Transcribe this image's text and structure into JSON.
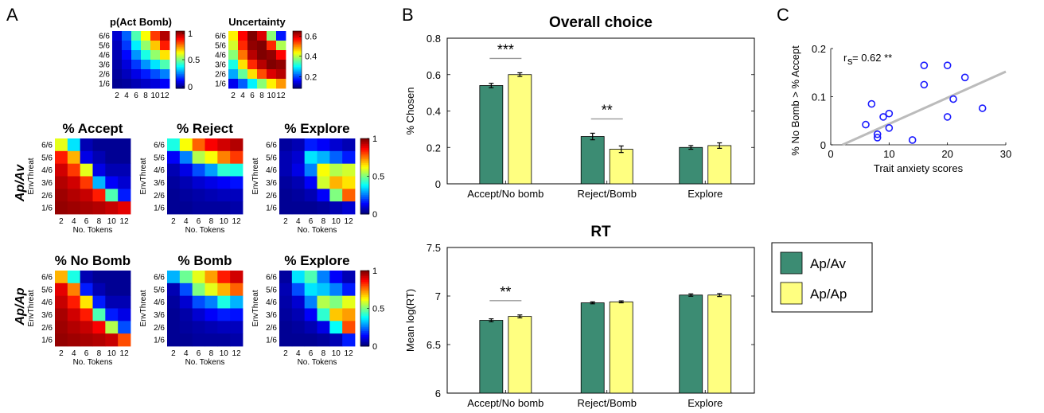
{
  "panel_letters": [
    "A",
    "B",
    "C"
  ],
  "heatmap_axes": {
    "ytick_labels": [
      "6/6",
      "5/6",
      "4/6",
      "3/6",
      "2/6",
      "1/6"
    ],
    "xtick_labels": [
      "2",
      "4",
      "6",
      "8",
      "10",
      "12"
    ],
    "ylabel": "EnvThreat",
    "xlabel": "No. Tokens"
  },
  "row_labels": {
    "row1": "Ap/Av",
    "row2": "Ap/Ap"
  },
  "colorbars": {
    "p_act_bomb": [
      "1",
      "0.5",
      "0"
    ],
    "uncertainty": [
      "0.6",
      "0.4",
      "0.2"
    ],
    "row1": [
      "1",
      "0.5",
      "0"
    ],
    "row2": [
      "1",
      "0.5",
      "0"
    ]
  },
  "legend": [
    {
      "label": "Ap/Av",
      "color": "#3c8c73"
    },
    {
      "label": "Ap/Ap",
      "color": "#ffff80"
    }
  ],
  "chart_data": [
    {
      "type": "heatmap",
      "id": "p_act_bomb",
      "title": "p(Act Bomb)",
      "rows": [
        "6/6",
        "5/6",
        "4/6",
        "3/6",
        "2/6",
        "1/6"
      ],
      "cols": [
        "2",
        "4",
        "6",
        "8",
        "10",
        "12"
      ],
      "range": [
        0,
        1
      ],
      "values": [
        [
          0.08,
          0.22,
          0.45,
          0.62,
          0.82,
          0.95
        ],
        [
          0.06,
          0.18,
          0.36,
          0.52,
          0.68,
          0.85
        ],
        [
          0.05,
          0.13,
          0.27,
          0.4,
          0.52,
          0.65
        ],
        [
          0.04,
          0.09,
          0.18,
          0.27,
          0.35,
          0.45
        ],
        [
          0.03,
          0.06,
          0.1,
          0.15,
          0.2,
          0.25
        ],
        [
          0.02,
          0.03,
          0.05,
          0.07,
          0.09,
          0.12
        ]
      ]
    },
    {
      "type": "heatmap",
      "id": "uncertainty",
      "title": "Uncertainty",
      "rows": [
        "6/6",
        "5/6",
        "4/6",
        "3/6",
        "2/6",
        "1/6"
      ],
      "cols": [
        "2",
        "4",
        "6",
        "8",
        "10",
        "12"
      ],
      "range": [
        0.1,
        0.65
      ],
      "values": [
        [
          0.45,
          0.58,
          0.65,
          0.6,
          0.38,
          0.18
        ],
        [
          0.42,
          0.56,
          0.64,
          0.65,
          0.56,
          0.4
        ],
        [
          0.38,
          0.52,
          0.62,
          0.65,
          0.64,
          0.58
        ],
        [
          0.32,
          0.46,
          0.56,
          0.62,
          0.65,
          0.64
        ],
        [
          0.26,
          0.36,
          0.46,
          0.54,
          0.6,
          0.62
        ],
        [
          0.16,
          0.22,
          0.3,
          0.38,
          0.45,
          0.5
        ]
      ]
    },
    {
      "type": "heatmap",
      "id": "apav_accept",
      "title": "% Accept",
      "rows": [
        "6/6",
        "5/6",
        "4/6",
        "3/6",
        "2/6",
        "1/6"
      ],
      "cols": [
        "2",
        "4",
        "6",
        "8",
        "10",
        "12"
      ],
      "range": [
        0,
        1
      ],
      "values": [
        [
          0.6,
          0.35,
          0.05,
          0.02,
          0.02,
          0.02
        ],
        [
          0.85,
          0.7,
          0.1,
          0.05,
          0.02,
          0.02
        ],
        [
          0.92,
          0.82,
          0.6,
          0.1,
          0.05,
          0.05
        ],
        [
          0.95,
          0.92,
          0.82,
          0.3,
          0.12,
          0.08
        ],
        [
          0.97,
          0.95,
          0.93,
          0.85,
          0.45,
          0.15
        ],
        [
          0.98,
          0.97,
          0.96,
          0.95,
          0.93,
          0.9
        ]
      ]
    },
    {
      "type": "heatmap",
      "id": "apav_reject",
      "title": "% Reject",
      "rows": [
        "6/6",
        "5/6",
        "4/6",
        "3/6",
        "2/6",
        "1/6"
      ],
      "cols": [
        "2",
        "4",
        "6",
        "8",
        "10",
        "12"
      ],
      "range": [
        0,
        1
      ],
      "values": [
        [
          0.4,
          0.62,
          0.78,
          0.88,
          0.92,
          0.95
        ],
        [
          0.12,
          0.25,
          0.55,
          0.62,
          0.75,
          0.82
        ],
        [
          0.05,
          0.1,
          0.2,
          0.28,
          0.42,
          0.4
        ],
        [
          0.03,
          0.05,
          0.08,
          0.1,
          0.12,
          0.14
        ],
        [
          0.02,
          0.03,
          0.04,
          0.05,
          0.06,
          0.06
        ],
        [
          0.02,
          0.02,
          0.03,
          0.03,
          0.03,
          0.04
        ]
      ]
    },
    {
      "type": "heatmap",
      "id": "apav_explore",
      "title": "% Explore",
      "rows": [
        "6/6",
        "5/6",
        "4/6",
        "3/6",
        "2/6",
        "1/6"
      ],
      "cols": [
        "2",
        "4",
        "6",
        "8",
        "10",
        "12"
      ],
      "range": [
        0,
        1
      ],
      "values": [
        [
          0.03,
          0.05,
          0.15,
          0.12,
          0.08,
          0.05
        ],
        [
          0.05,
          0.08,
          0.35,
          0.3,
          0.22,
          0.15
        ],
        [
          0.05,
          0.1,
          0.25,
          0.62,
          0.55,
          0.58
        ],
        [
          0.03,
          0.05,
          0.12,
          0.58,
          0.7,
          0.65
        ],
        [
          0.02,
          0.03,
          0.05,
          0.12,
          0.5,
          0.78
        ],
        [
          0.02,
          0.02,
          0.02,
          0.03,
          0.05,
          0.08
        ]
      ]
    },
    {
      "type": "heatmap",
      "id": "apap_nobomb",
      "title": "% No Bomb",
      "rows": [
        "6/6",
        "5/6",
        "4/6",
        "3/6",
        "2/6",
        "1/6"
      ],
      "cols": [
        "2",
        "4",
        "6",
        "8",
        "10",
        "12"
      ],
      "range": [
        0,
        1
      ],
      "values": [
        [
          0.7,
          0.4,
          0.05,
          0.02,
          0.02,
          0.02
        ],
        [
          0.9,
          0.75,
          0.15,
          0.05,
          0.02,
          0.02
        ],
        [
          0.93,
          0.85,
          0.65,
          0.15,
          0.05,
          0.05
        ],
        [
          0.96,
          0.92,
          0.85,
          0.45,
          0.15,
          0.1
        ],
        [
          0.97,
          0.95,
          0.93,
          0.88,
          0.55,
          0.2
        ],
        [
          0.98,
          0.97,
          0.96,
          0.95,
          0.93,
          0.8
        ]
      ]
    },
    {
      "type": "heatmap",
      "id": "apap_bomb",
      "title": "% Bomb",
      "rows": [
        "6/6",
        "5/6",
        "4/6",
        "3/6",
        "2/6",
        "1/6"
      ],
      "cols": [
        "2",
        "4",
        "6",
        "8",
        "10",
        "12"
      ],
      "range": [
        0,
        1
      ],
      "values": [
        [
          0.3,
          0.48,
          0.6,
          0.72,
          0.85,
          0.92
        ],
        [
          0.05,
          0.2,
          0.5,
          0.6,
          0.7,
          0.78
        ],
        [
          0.03,
          0.08,
          0.2,
          0.25,
          0.4,
          0.3
        ],
        [
          0.02,
          0.04,
          0.08,
          0.12,
          0.15,
          0.14
        ],
        [
          0.02,
          0.03,
          0.04,
          0.05,
          0.06,
          0.06
        ],
        [
          0.02,
          0.02,
          0.03,
          0.03,
          0.03,
          0.04
        ]
      ]
    },
    {
      "type": "heatmap",
      "id": "apap_explore",
      "title": "% Explore",
      "rows": [
        "6/6",
        "5/6",
        "4/6",
        "3/6",
        "2/6",
        "1/6"
      ],
      "cols": [
        "2",
        "4",
        "6",
        "8",
        "10",
        "12"
      ],
      "range": [
        0,
        1
      ],
      "values": [
        [
          0.03,
          0.35,
          0.45,
          0.25,
          0.12,
          0.05
        ],
        [
          0.05,
          0.2,
          0.35,
          0.32,
          0.25,
          0.15
        ],
        [
          0.04,
          0.08,
          0.25,
          0.55,
          0.5,
          0.6
        ],
        [
          0.03,
          0.05,
          0.12,
          0.42,
          0.68,
          0.72
        ],
        [
          0.02,
          0.03,
          0.05,
          0.1,
          0.38,
          0.8
        ],
        [
          0.02,
          0.02,
          0.02,
          0.03,
          0.05,
          0.15
        ]
      ]
    },
    {
      "type": "bar",
      "id": "overall_choice",
      "title": "Overall choice",
      "categories": [
        "Accept/No bomb",
        "Reject/Bomb",
        "Explore"
      ],
      "ylabel": "% Chosen",
      "ylim": [
        0,
        0.8
      ],
      "yticks": [
        "0",
        "0.2",
        "0.4",
        "0.6",
        "0.8"
      ],
      "series": [
        {
          "name": "Ap/Av",
          "values": [
            0.54,
            0.26,
            0.2
          ],
          "err": [
            0.012,
            0.018,
            0.01
          ]
        },
        {
          "name": "Ap/Ap",
          "values": [
            0.6,
            0.19,
            0.21
          ],
          "err": [
            0.01,
            0.018,
            0.015
          ]
        }
      ],
      "significance": [
        {
          "category": 0,
          "label": "***"
        },
        {
          "category": 1,
          "label": "**"
        }
      ]
    },
    {
      "type": "bar",
      "id": "rt",
      "title": "RT",
      "categories": [
        "Accept/No bomb",
        "Reject/Bomb",
        "Explore"
      ],
      "ylabel": "Mean log(RT)",
      "ylim": [
        6,
        7.5
      ],
      "yticks": [
        "6",
        "6.5",
        "7",
        "7.5"
      ],
      "series": [
        {
          "name": "Ap/Av",
          "values": [
            6.75,
            6.93,
            7.01
          ],
          "err": [
            0.015,
            0.01,
            0.012
          ]
        },
        {
          "name": "Ap/Ap",
          "values": [
            6.79,
            6.94,
            7.01
          ],
          "err": [
            0.015,
            0.01,
            0.015
          ]
        }
      ],
      "significance": [
        {
          "category": 0,
          "label": "**"
        }
      ]
    },
    {
      "type": "scatter",
      "id": "anxiety",
      "xlabel": "Trait anxiety scores",
      "ylabel": "% No Bomb > % Accept",
      "xlim": [
        0,
        30
      ],
      "ylim": [
        0,
        0.2
      ],
      "xticks": [
        "0",
        "10",
        "20",
        "30"
      ],
      "yticks": [
        "0",
        "0.1",
        "0.2"
      ],
      "annotation": "r",
      "annotation_sub": "s",
      "annotation_rest": "= 0.62 **",
      "points": [
        [
          6,
          0.042
        ],
        [
          7,
          0.085
        ],
        [
          8,
          0.022
        ],
        [
          8,
          0.015
        ],
        [
          9,
          0.058
        ],
        [
          10,
          0.065
        ],
        [
          10,
          0.035
        ],
        [
          14,
          0.01
        ],
        [
          16,
          0.165
        ],
        [
          16,
          0.125
        ],
        [
          20,
          0.165
        ],
        [
          20,
          0.058
        ],
        [
          21,
          0.095
        ],
        [
          23,
          0.14
        ],
        [
          26,
          0.076
        ]
      ],
      "fit": [
        [
          2,
          0.0
        ],
        [
          30,
          0.152
        ]
      ]
    }
  ]
}
